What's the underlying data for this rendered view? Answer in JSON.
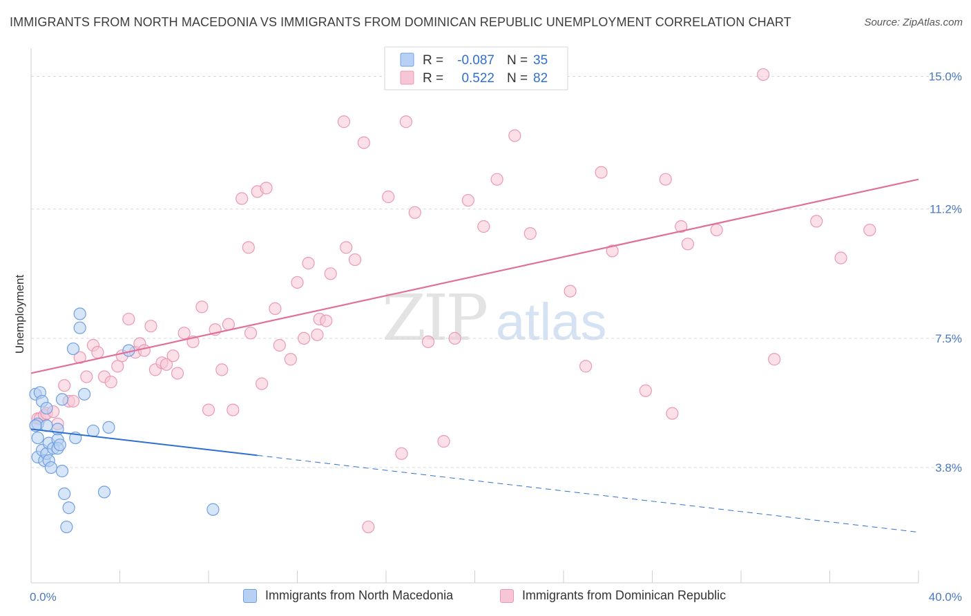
{
  "title": "IMMIGRANTS FROM NORTH MACEDONIA VS IMMIGRANTS FROM DOMINICAN REPUBLIC UNEMPLOYMENT CORRELATION CHART",
  "source": "Source: ZipAtlas.com",
  "watermark": {
    "zip": "ZIP",
    "atlas": "atlas"
  },
  "colors": {
    "blue": "#2f6fd0",
    "blue_fill": "#b7d0f3",
    "blue_stroke": "#6f9fe0",
    "pink": "#e0709a",
    "pink_fill": "#f7c6d6",
    "pink_stroke": "#eb98b6",
    "grid": "#d8d8d8",
    "tick_text": "#4a78c2"
  },
  "legend": {
    "r_label": "R =",
    "n_label": "N =",
    "series": [
      {
        "r": "-0.087",
        "n": "35"
      },
      {
        "r": "0.522",
        "n": "82"
      }
    ]
  },
  "chart_data": {
    "type": "scatter",
    "title": "IMMIGRANTS FROM NORTH MACEDONIA VS IMMIGRANTS FROM DOMINICAN REPUBLIC UNEMPLOYMENT CORRELATION CHART",
    "xlabel": "",
    "ylabel": "Unemployment",
    "xlim": [
      0,
      40
    ],
    "ylim": [
      0.5,
      15.8
    ],
    "x_tick_labels": [
      "0.0%",
      "40.0%"
    ],
    "y_ticks": [
      3.8,
      7.5,
      11.2,
      15.0
    ],
    "y_tick_labels": [
      "3.8%",
      "7.5%",
      "11.2%",
      "15.0%"
    ],
    "grid": true,
    "legend_position": "top-center",
    "series": [
      {
        "name": "Immigrants from North Macedonia",
        "color": "#2f6fd0",
        "trend": {
          "x0": 0.0,
          "y0": 4.9,
          "x1": 10.2,
          "y1": 4.15,
          "dashed_to_x": 40.0,
          "dashed_to_y": 1.95
        },
        "points": [
          [
            0.2,
            5.9
          ],
          [
            0.3,
            5.05
          ],
          [
            0.3,
            4.65
          ],
          [
            0.3,
            4.1
          ],
          [
            0.4,
            5.95
          ],
          [
            0.5,
            5.7
          ],
          [
            0.5,
            4.3
          ],
          [
            0.6,
            4.0
          ],
          [
            0.7,
            5.5
          ],
          [
            0.7,
            4.2
          ],
          [
            0.7,
            5.0
          ],
          [
            0.8,
            4.0
          ],
          [
            0.8,
            4.5
          ],
          [
            0.9,
            3.8
          ],
          [
            1.0,
            4.35
          ],
          [
            1.2,
            4.9
          ],
          [
            1.2,
            4.6
          ],
          [
            1.2,
            4.35
          ],
          [
            1.3,
            4.45
          ],
          [
            1.4,
            5.75
          ],
          [
            1.4,
            3.7
          ],
          [
            1.5,
            3.05
          ],
          [
            1.6,
            2.1
          ],
          [
            1.7,
            2.65
          ],
          [
            2.0,
            4.65
          ],
          [
            2.2,
            8.2
          ],
          [
            2.2,
            7.8
          ],
          [
            1.9,
            7.2
          ],
          [
            2.4,
            5.9
          ],
          [
            2.8,
            4.85
          ],
          [
            3.3,
            3.1
          ],
          [
            3.5,
            4.95
          ],
          [
            4.4,
            7.15
          ],
          [
            8.2,
            2.6
          ],
          [
            0.2,
            5.0
          ]
        ]
      },
      {
        "name": "Immigrants from Dominican Republic",
        "color": "#e0709a",
        "trend": {
          "x0": 0.0,
          "y0": 6.5,
          "x1": 40.0,
          "y1": 12.05
        },
        "points": [
          [
            0.3,
            5.2
          ],
          [
            0.4,
            5.2
          ],
          [
            0.6,
            5.3
          ],
          [
            0.7,
            5.35
          ],
          [
            1.0,
            5.4
          ],
          [
            1.2,
            5.05
          ],
          [
            1.5,
            6.15
          ],
          [
            1.7,
            5.7
          ],
          [
            1.9,
            5.7
          ],
          [
            2.2,
            6.95
          ],
          [
            2.5,
            6.4
          ],
          [
            2.8,
            7.3
          ],
          [
            3.0,
            7.1
          ],
          [
            3.3,
            6.4
          ],
          [
            3.6,
            6.25
          ],
          [
            3.9,
            6.7
          ],
          [
            4.1,
            7.0
          ],
          [
            4.4,
            8.05
          ],
          [
            4.7,
            7.1
          ],
          [
            4.9,
            7.35
          ],
          [
            5.1,
            7.15
          ],
          [
            5.4,
            7.85
          ],
          [
            5.6,
            6.6
          ],
          [
            5.9,
            6.8
          ],
          [
            6.1,
            6.75
          ],
          [
            6.4,
            7.0
          ],
          [
            6.6,
            6.5
          ],
          [
            6.9,
            7.65
          ],
          [
            7.3,
            7.4
          ],
          [
            7.7,
            8.4
          ],
          [
            8.0,
            5.45
          ],
          [
            8.3,
            7.75
          ],
          [
            8.6,
            6.6
          ],
          [
            8.9,
            7.9
          ],
          [
            9.1,
            5.45
          ],
          [
            9.5,
            11.5
          ],
          [
            9.8,
            10.1
          ],
          [
            9.9,
            7.65
          ],
          [
            10.2,
            11.7
          ],
          [
            10.6,
            11.8
          ],
          [
            10.4,
            6.2
          ],
          [
            11.0,
            8.35
          ],
          [
            11.2,
            7.3
          ],
          [
            11.7,
            6.9
          ],
          [
            12.0,
            9.1
          ],
          [
            12.3,
            7.5
          ],
          [
            12.5,
            9.65
          ],
          [
            12.9,
            7.6
          ],
          [
            13.0,
            8.05
          ],
          [
            13.3,
            8.0
          ],
          [
            13.5,
            9.35
          ],
          [
            14.1,
            13.7
          ],
          [
            14.2,
            10.1
          ],
          [
            14.6,
            9.75
          ],
          [
            15.0,
            13.1
          ],
          [
            15.2,
            2.1
          ],
          [
            16.1,
            11.55
          ],
          [
            16.7,
            4.2
          ],
          [
            16.9,
            13.7
          ],
          [
            17.3,
            11.1
          ],
          [
            17.9,
            7.4
          ],
          [
            18.6,
            4.55
          ],
          [
            19.1,
            7.5
          ],
          [
            19.7,
            11.45
          ],
          [
            20.4,
            10.7
          ],
          [
            21.0,
            12.05
          ],
          [
            21.8,
            13.3
          ],
          [
            22.5,
            10.5
          ],
          [
            24.3,
            8.85
          ],
          [
            25.0,
            6.7
          ],
          [
            25.7,
            12.25
          ],
          [
            26.2,
            10.0
          ],
          [
            27.7,
            6.0
          ],
          [
            28.6,
            12.05
          ],
          [
            28.9,
            5.35
          ],
          [
            29.3,
            10.7
          ],
          [
            29.6,
            10.2
          ],
          [
            30.9,
            10.6
          ],
          [
            33.0,
            15.05
          ],
          [
            33.5,
            6.9
          ],
          [
            35.4,
            10.85
          ],
          [
            36.5,
            9.8
          ],
          [
            37.8,
            10.6
          ]
        ]
      }
    ]
  },
  "bottom_legend": [
    {
      "label": "Immigrants from North Macedonia"
    },
    {
      "label": "Immigrants from Dominican Republic"
    }
  ]
}
